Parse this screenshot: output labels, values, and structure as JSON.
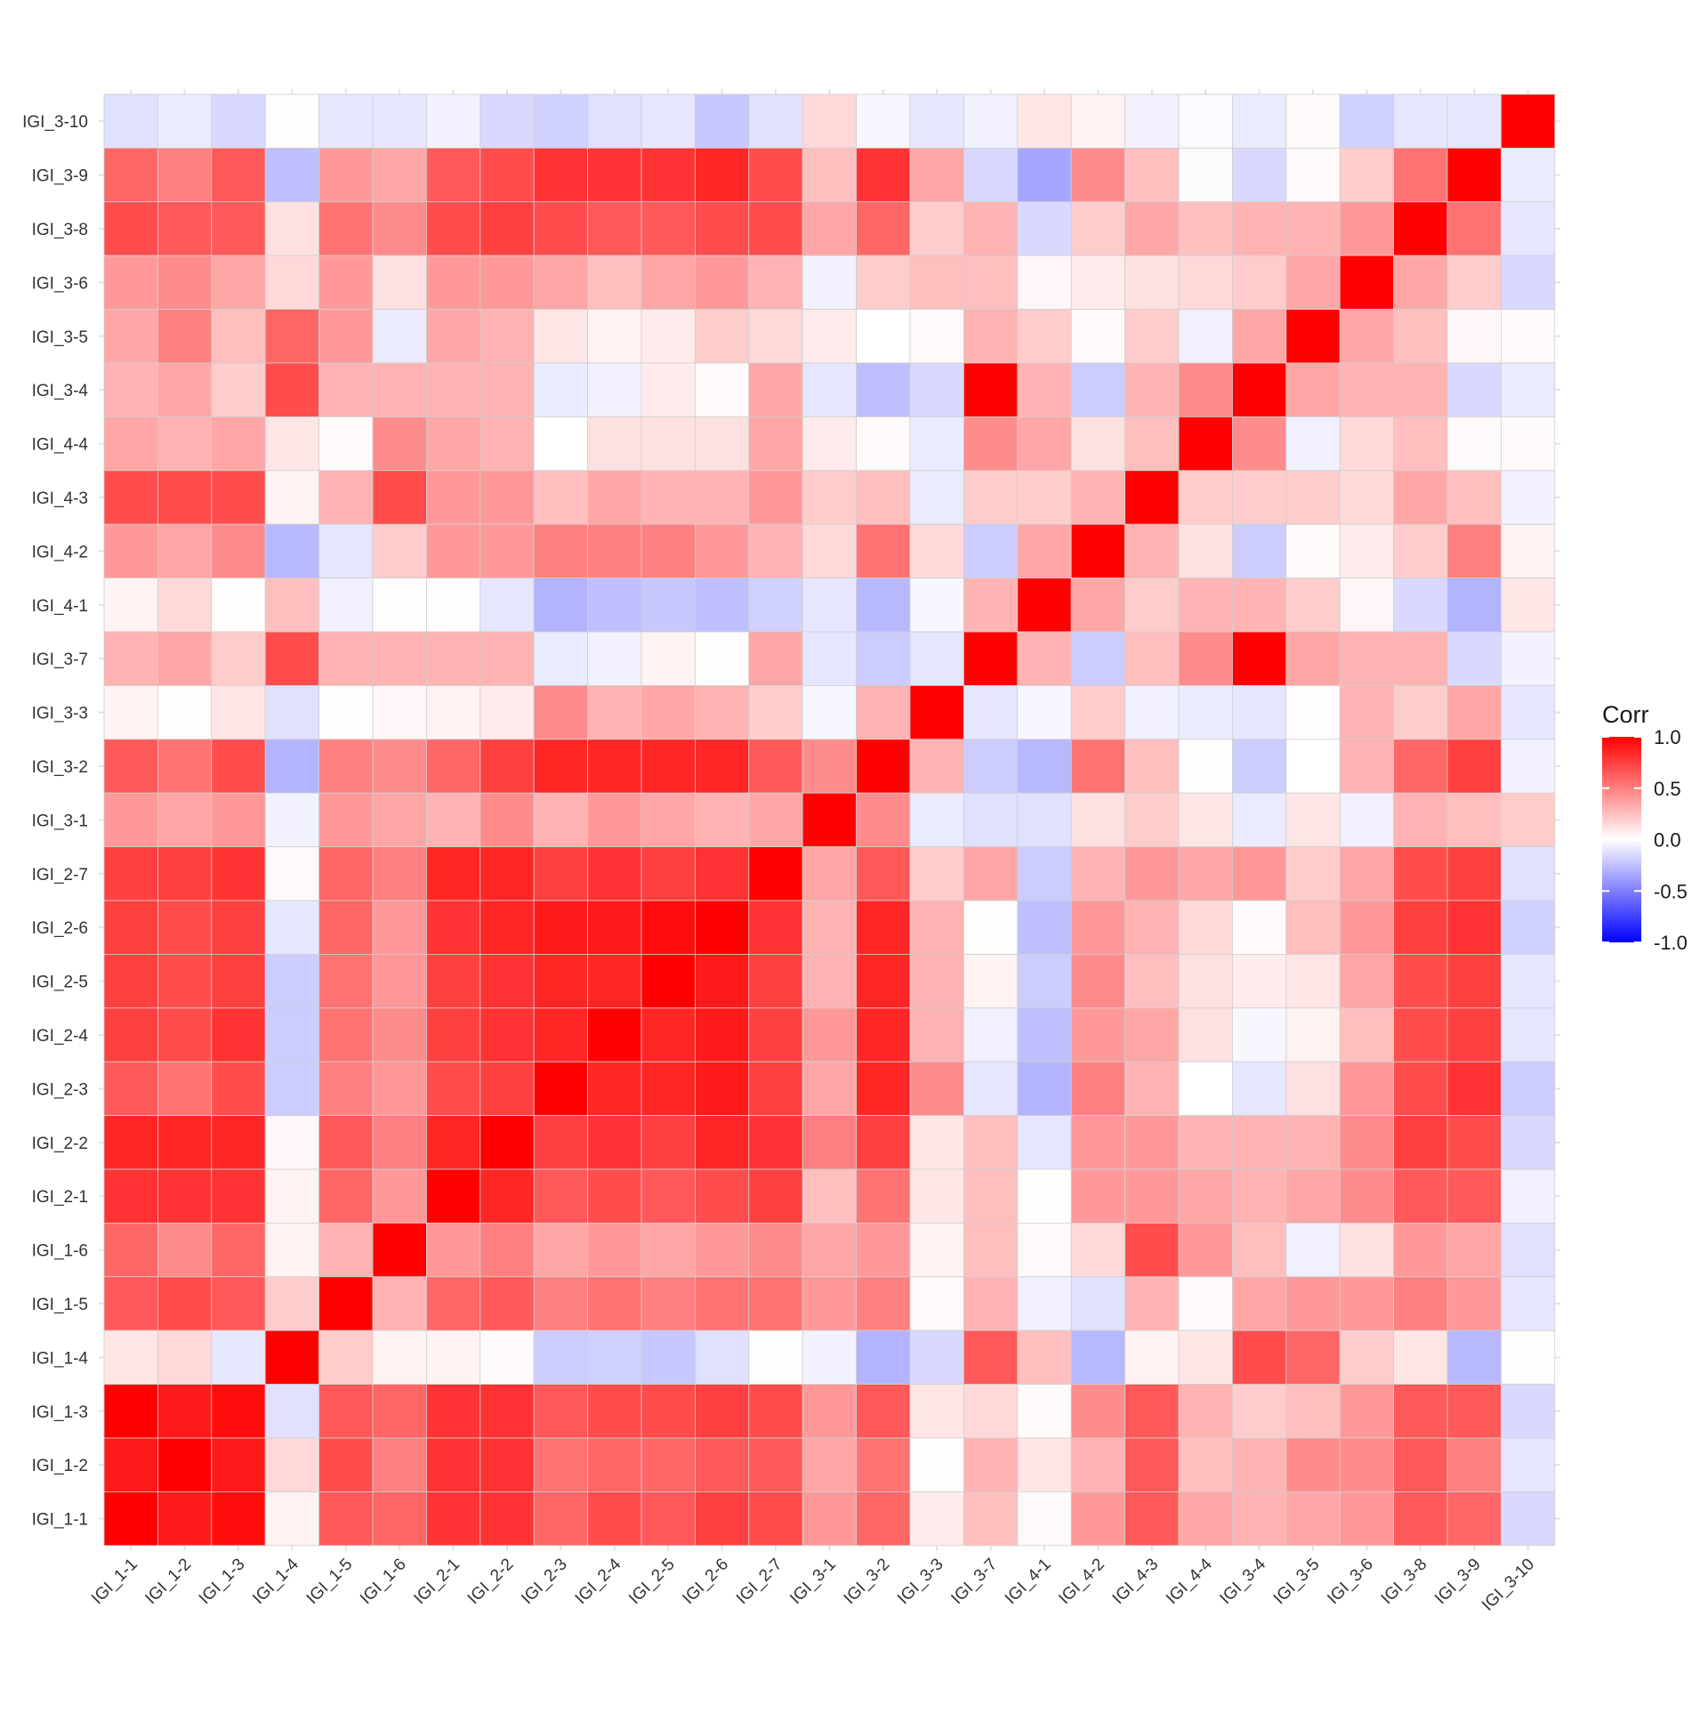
{
  "chart_data": {
    "type": "heatmap",
    "legend_title": "Corr",
    "legend_position": "right",
    "scale": {
      "min": -1.0,
      "max": 1.0,
      "low_color": "#0000FF",
      "mid_color": "#FFFFFF",
      "high_color": "#FF0000"
    },
    "legend_ticks": [
      "1.0",
      "0.5",
      "0.0",
      "-0.5",
      "-1.0"
    ],
    "legend_tick_values": [
      1.0,
      0.5,
      0.0,
      -0.5,
      -1.0
    ],
    "x_labels": [
      "IGI_1-1",
      "IGI_1-2",
      "IGI_1-3",
      "IGI_1-4",
      "IGI_1-5",
      "IGI_1-6",
      "IGI_2-1",
      "IGI_2-2",
      "IGI_2-3",
      "IGI_2-4",
      "IGI_2-5",
      "IGI_2-6",
      "IGI_2-7",
      "IGI_3-1",
      "IGI_3-2",
      "IGI_3-3",
      "IGI_3-7",
      "IGI_4-1",
      "IGI_4-2",
      "IGI_4-3",
      "IGI_4-4",
      "IGI_3-4",
      "IGI_3-5",
      "IGI_3-6",
      "IGI_3-8",
      "IGI_3-9",
      "IGI_3-10"
    ],
    "y_labels_top_to_bottom": [
      "IGI_3-10",
      "IGI_3-9",
      "IGI_3-8",
      "IGI_3-6",
      "IGI_3-5",
      "IGI_3-4",
      "IGI_4-4",
      "IGI_4-3",
      "IGI_4-2",
      "IGI_4-1",
      "IGI_3-7",
      "IGI_3-3",
      "IGI_3-2",
      "IGI_3-1",
      "IGI_2-7",
      "IGI_2-6",
      "IGI_2-5",
      "IGI_2-4",
      "IGI_2-3",
      "IGI_2-2",
      "IGI_2-1",
      "IGI_1-6",
      "IGI_1-5",
      "IGI_1-4",
      "IGI_1-3",
      "IGI_1-2",
      "IGI_1-1"
    ],
    "values_top_to_bottom": [
      [
        -0.12,
        -0.08,
        -0.15,
        0.01,
        -0.1,
        -0.1,
        -0.05,
        -0.15,
        -0.18,
        -0.12,
        -0.1,
        -0.22,
        -0.12,
        0.15,
        -0.03,
        -0.1,
        -0.06,
        0.1,
        0.05,
        -0.05,
        -0.02,
        -0.08,
        0.02,
        -0.18,
        -0.1,
        -0.1,
        1.0
      ],
      [
        0.6,
        0.5,
        0.65,
        -0.25,
        0.4,
        0.35,
        0.65,
        0.7,
        0.8,
        0.8,
        0.8,
        0.85,
        0.7,
        0.25,
        0.8,
        0.35,
        -0.15,
        -0.35,
        0.45,
        0.25,
        -0.01,
        -0.15,
        0.02,
        0.2,
        0.55,
        1.0,
        -0.08
      ],
      [
        0.7,
        0.65,
        0.65,
        0.12,
        0.55,
        0.45,
        0.7,
        0.75,
        0.7,
        0.65,
        0.65,
        0.7,
        0.7,
        0.35,
        0.6,
        0.2,
        0.3,
        -0.15,
        0.2,
        0.35,
        0.25,
        0.3,
        0.3,
        0.4,
        1.0,
        0.55,
        -0.1
      ],
      [
        0.4,
        0.45,
        0.35,
        0.15,
        0.4,
        0.12,
        0.4,
        0.4,
        0.35,
        0.25,
        0.35,
        0.4,
        0.3,
        -0.05,
        0.2,
        0.25,
        0.25,
        0.03,
        0.08,
        0.12,
        0.15,
        0.2,
        0.35,
        1.0,
        0.35,
        0.2,
        -0.15
      ],
      [
        0.35,
        0.5,
        0.25,
        0.6,
        0.4,
        -0.08,
        0.35,
        0.3,
        0.1,
        0.05,
        0.08,
        0.2,
        0.15,
        0.08,
        0.0,
        0.02,
        0.3,
        0.2,
        0.02,
        0.2,
        -0.06,
        0.35,
        1.0,
        0.35,
        0.25,
        0.03,
        0.02
      ],
      [
        0.3,
        0.35,
        0.2,
        0.7,
        0.3,
        0.3,
        0.3,
        0.3,
        -0.08,
        -0.05,
        0.08,
        0.02,
        0.35,
        -0.1,
        -0.25,
        -0.15,
        1.0,
        0.3,
        -0.2,
        0.3,
        0.45,
        1.0,
        0.35,
        0.3,
        0.3,
        -0.15,
        -0.08
      ],
      [
        0.35,
        0.3,
        0.35,
        0.1,
        0.02,
        0.45,
        0.35,
        0.3,
        0.0,
        0.12,
        0.12,
        0.12,
        0.35,
        0.08,
        0.02,
        -0.08,
        0.45,
        0.35,
        0.12,
        0.25,
        1.0,
        0.45,
        -0.06,
        0.15,
        0.25,
        0.02,
        0.02
      ],
      [
        0.7,
        0.7,
        0.7,
        0.05,
        0.3,
        0.7,
        0.4,
        0.4,
        0.25,
        0.35,
        0.3,
        0.3,
        0.4,
        0.2,
        0.25,
        -0.08,
        0.2,
        0.2,
        0.3,
        1.0,
        0.2,
        0.2,
        0.2,
        0.15,
        0.35,
        0.25,
        -0.05
      ],
      [
        0.4,
        0.35,
        0.45,
        -0.28,
        -0.1,
        0.2,
        0.4,
        0.4,
        0.5,
        0.5,
        0.5,
        0.4,
        0.3,
        0.15,
        0.55,
        0.15,
        -0.2,
        0.35,
        1.0,
        0.3,
        0.12,
        -0.2,
        0.02,
        0.08,
        0.2,
        0.5,
        0.05
      ],
      [
        0.05,
        0.15,
        0.01,
        0.25,
        -0.06,
        0.01,
        0.01,
        -0.1,
        -0.3,
        -0.25,
        -0.22,
        -0.25,
        -0.18,
        -0.1,
        -0.28,
        -0.03,
        0.3,
        1.0,
        0.35,
        0.2,
        0.3,
        0.3,
        0.2,
        0.03,
        -0.15,
        -0.3,
        0.1
      ],
      [
        0.3,
        0.35,
        0.2,
        0.7,
        0.3,
        0.3,
        0.3,
        0.3,
        -0.08,
        -0.05,
        0.05,
        0.01,
        0.35,
        -0.1,
        -0.2,
        -0.1,
        1.0,
        0.3,
        -0.2,
        0.25,
        0.45,
        1.0,
        0.35,
        0.3,
        0.3,
        -0.15,
        -0.05
      ],
      [
        0.05,
        0.01,
        0.1,
        -0.12,
        0.01,
        0.03,
        0.05,
        0.08,
        0.45,
        0.3,
        0.35,
        0.3,
        0.2,
        -0.03,
        0.3,
        1.0,
        -0.1,
        -0.03,
        0.2,
        -0.06,
        -0.08,
        -0.1,
        0.01,
        0.3,
        0.2,
        0.35,
        -0.1
      ],
      [
        0.65,
        0.55,
        0.7,
        -0.3,
        0.5,
        0.45,
        0.6,
        0.75,
        0.85,
        0.85,
        0.85,
        0.85,
        0.65,
        0.45,
        1.0,
        0.3,
        -0.2,
        -0.28,
        0.55,
        0.25,
        0.01,
        -0.2,
        0.0,
        0.3,
        0.6,
        0.75,
        -0.05
      ],
      [
        0.4,
        0.35,
        0.4,
        -0.05,
        0.4,
        0.35,
        0.3,
        0.45,
        0.3,
        0.4,
        0.35,
        0.3,
        0.35,
        1.0,
        0.45,
        -0.08,
        -0.12,
        -0.12,
        0.12,
        0.2,
        0.1,
        -0.08,
        0.1,
        -0.06,
        0.3,
        0.25,
        0.2
      ],
      [
        0.75,
        0.75,
        0.8,
        0.02,
        0.6,
        0.5,
        0.85,
        0.85,
        0.75,
        0.8,
        0.75,
        0.8,
        1.0,
        0.35,
        0.65,
        0.2,
        0.35,
        -0.2,
        0.3,
        0.4,
        0.35,
        0.4,
        0.2,
        0.35,
        0.7,
        0.75,
        -0.12
      ],
      [
        0.75,
        0.7,
        0.75,
        -0.1,
        0.6,
        0.4,
        0.8,
        0.85,
        0.9,
        0.9,
        0.95,
        1.0,
        0.8,
        0.3,
        0.85,
        0.3,
        0.01,
        -0.25,
        0.4,
        0.3,
        0.15,
        0.02,
        0.25,
        0.4,
        0.75,
        0.8,
        -0.18
      ],
      [
        0.75,
        0.7,
        0.75,
        -0.2,
        0.55,
        0.4,
        0.75,
        0.8,
        0.85,
        0.85,
        1.0,
        0.9,
        0.75,
        0.3,
        0.85,
        0.3,
        0.05,
        -0.2,
        0.45,
        0.25,
        0.12,
        0.08,
        0.1,
        0.35,
        0.7,
        0.75,
        -0.1
      ],
      [
        0.75,
        0.7,
        0.8,
        -0.2,
        0.55,
        0.45,
        0.75,
        0.8,
        0.85,
        1.0,
        0.85,
        0.9,
        0.75,
        0.4,
        0.85,
        0.3,
        -0.06,
        -0.25,
        0.4,
        0.35,
        0.12,
        -0.03,
        0.05,
        0.25,
        0.7,
        0.75,
        -0.1
      ],
      [
        0.65,
        0.55,
        0.7,
        -0.2,
        0.5,
        0.4,
        0.7,
        0.75,
        1.0,
        0.85,
        0.85,
        0.9,
        0.75,
        0.35,
        0.85,
        0.45,
        -0.1,
        -0.3,
        0.5,
        0.3,
        0.0,
        -0.1,
        0.12,
        0.4,
        0.7,
        0.8,
        -0.2
      ],
      [
        0.85,
        0.85,
        0.85,
        0.03,
        0.65,
        0.5,
        0.85,
        1.0,
        0.75,
        0.8,
        0.75,
        0.85,
        0.8,
        0.5,
        0.75,
        0.1,
        0.25,
        -0.1,
        0.4,
        0.4,
        0.3,
        0.3,
        0.3,
        0.45,
        0.75,
        0.7,
        -0.15
      ],
      [
        0.8,
        0.8,
        0.8,
        0.05,
        0.6,
        0.4,
        1.0,
        0.85,
        0.65,
        0.7,
        0.65,
        0.7,
        0.75,
        0.25,
        0.55,
        0.1,
        0.25,
        0.01,
        0.4,
        0.4,
        0.35,
        0.3,
        0.35,
        0.45,
        0.65,
        0.65,
        -0.06
      ],
      [
        0.6,
        0.45,
        0.6,
        0.05,
        0.3,
        1.0,
        0.4,
        0.5,
        0.35,
        0.4,
        0.35,
        0.4,
        0.45,
        0.35,
        0.4,
        0.05,
        0.25,
        0.02,
        0.15,
        0.7,
        0.4,
        0.25,
        -0.06,
        0.12,
        0.4,
        0.35,
        -0.12
      ],
      [
        0.65,
        0.7,
        0.65,
        0.2,
        1.0,
        0.3,
        0.6,
        0.65,
        0.5,
        0.55,
        0.5,
        0.55,
        0.55,
        0.4,
        0.5,
        0.02,
        0.3,
        -0.06,
        -0.12,
        0.3,
        0.02,
        0.35,
        0.4,
        0.4,
        0.5,
        0.4,
        -0.1
      ],
      [
        0.1,
        0.15,
        -0.1,
        1.0,
        0.2,
        0.05,
        0.05,
        0.02,
        -0.2,
        -0.18,
        -0.22,
        -0.12,
        0.01,
        -0.05,
        -0.3,
        -0.15,
        0.65,
        0.25,
        -0.28,
        0.05,
        0.1,
        0.7,
        0.6,
        0.2,
        0.1,
        -0.28,
        0.01
      ],
      [
        1.0,
        0.9,
        0.95,
        -0.12,
        0.65,
        0.6,
        0.8,
        0.8,
        0.65,
        0.7,
        0.7,
        0.75,
        0.7,
        0.4,
        0.65,
        0.1,
        0.15,
        0.02,
        0.45,
        0.65,
        0.3,
        0.2,
        0.25,
        0.4,
        0.65,
        0.65,
        -0.15
      ],
      [
        0.9,
        1.0,
        0.9,
        0.15,
        0.7,
        0.5,
        0.8,
        0.8,
        0.55,
        0.6,
        0.6,
        0.65,
        0.65,
        0.35,
        0.55,
        0.01,
        0.3,
        0.1,
        0.3,
        0.65,
        0.25,
        0.3,
        0.45,
        0.45,
        0.65,
        0.5,
        -0.1
      ],
      [
        1.0,
        0.9,
        0.95,
        0.05,
        0.65,
        0.6,
        0.8,
        0.8,
        0.6,
        0.7,
        0.65,
        0.75,
        0.7,
        0.4,
        0.6,
        0.08,
        0.25,
        0.02,
        0.4,
        0.65,
        0.35,
        0.3,
        0.35,
        0.4,
        0.65,
        0.6,
        -0.15
      ]
    ]
  }
}
